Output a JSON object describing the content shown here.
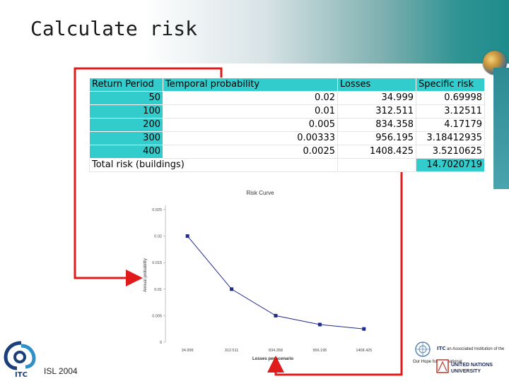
{
  "slide": {
    "title": "Calculate risk",
    "footer_text": "ISL 2004",
    "logo_icon": "itc-logo-icon",
    "partner_text": {
      "itc_line": "an Associated Institution of the",
      "un_line1": "UNITED NATIONS",
      "un_line2": "UNIVERSITY",
      "un_motto": "Our Hope for International"
    }
  },
  "table": {
    "headers": [
      "Return  Period",
      "Temporal probability",
      "Losses",
      "Specific risk"
    ],
    "rows": [
      [
        "50",
        "0.02",
        "34.999",
        "0.69998"
      ],
      [
        "100",
        "0.01",
        "312.511",
        "3.12511"
      ],
      [
        "200",
        "0.005",
        "834.358",
        "4.17179"
      ],
      [
        "300",
        "0.00333",
        "956.195",
        "3.18412935"
      ],
      [
        "400",
        "0.0025",
        "1408.425",
        "3.5210625"
      ]
    ],
    "total_label": "Total risk (buildings)",
    "total_value": "14.7020719"
  },
  "chart_data": {
    "type": "line",
    "title": "Risk Curve",
    "xlabel": "Losses per scenario",
    "ylabel": "Annual probability",
    "categories": [
      "34.999",
      "312.511",
      "834.358",
      "956.195",
      "1408.425"
    ],
    "values": [
      0.02,
      0.01,
      0.005,
      0.00333,
      0.0025
    ],
    "ylim": [
      0,
      0.025
    ],
    "y_ticks": [
      "0",
      "0.005",
      "0.01",
      "0.015",
      "0.02",
      "0.025"
    ],
    "grid": false,
    "series_color": "#1f2a8c"
  },
  "colors": {
    "table_teal": "#33cccc",
    "arrow_red": "#e01b1b",
    "header_teal": "#1e8c8c"
  }
}
